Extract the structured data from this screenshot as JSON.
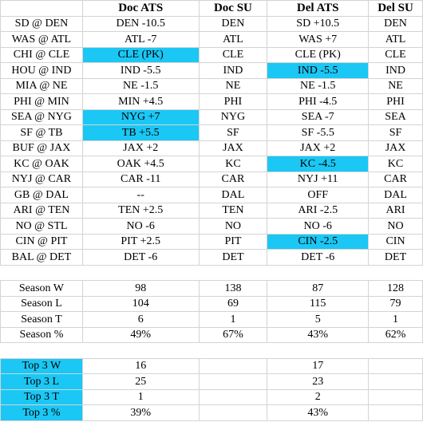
{
  "headers": [
    "",
    "Doc ATS",
    "Doc SU",
    "Del ATS",
    "Del SU"
  ],
  "games": [
    [
      "SD @ DEN",
      "DEN -10.5",
      "DEN",
      "SD +10.5",
      "DEN"
    ],
    [
      "WAS @ ATL",
      "ATL -7",
      "ATL",
      "WAS +7",
      "ATL"
    ],
    [
      "CHI @ CLE",
      "CLE (PK)",
      "CLE",
      "CLE (PK)",
      "CLE"
    ],
    [
      "HOU @ IND",
      "IND -5.5",
      "IND",
      "IND -5.5",
      "IND"
    ],
    [
      "MIA @ NE",
      "NE -1.5",
      "NE",
      "NE -1.5",
      "NE"
    ],
    [
      "PHI @ MIN",
      "MIN +4.5",
      "PHI",
      "PHI -4.5",
      "PHI"
    ],
    [
      "SEA @ NYG",
      "NYG +7",
      "NYG",
      "SEA -7",
      "SEA"
    ],
    [
      "SF @ TB",
      "TB +5.5",
      "SF",
      "SF -5.5",
      "SF"
    ],
    [
      "BUF @ JAX",
      "JAX +2",
      "JAX",
      "JAX +2",
      "JAX"
    ],
    [
      "KC @ OAK",
      "OAK +4.5",
      "KC",
      "KC -4.5",
      "KC"
    ],
    [
      "NYJ @ CAR",
      "CAR -11",
      "CAR",
      "NYJ +11",
      "CAR"
    ],
    [
      "GB @ DAL",
      "--",
      "DAL",
      "OFF",
      "DAL"
    ],
    [
      "ARI @ TEN",
      "TEN +2.5",
      "TEN",
      "ARI -2.5",
      "ARI"
    ],
    [
      "NO @ STL",
      "NO -6",
      "NO",
      "NO -6",
      "NO"
    ],
    [
      "CIN @ PIT",
      "PIT +2.5",
      "PIT",
      "CIN -2.5",
      "CIN"
    ],
    [
      "BAL @ DET",
      "DET -6",
      "DET",
      "DET -6",
      "DET"
    ]
  ],
  "season": [
    [
      "Season W",
      "98",
      "138",
      "87",
      "128"
    ],
    [
      "Season L",
      "104",
      "69",
      "115",
      "79"
    ],
    [
      "Season T",
      "6",
      "1",
      "5",
      "1"
    ],
    [
      "Season %",
      "49%",
      "67%",
      "43%",
      "62%"
    ]
  ],
  "top3": [
    [
      "Top 3 W",
      "16",
      "",
      "17",
      ""
    ],
    [
      "Top 3 L",
      "25",
      "",
      "23",
      ""
    ],
    [
      "Top 3 T",
      "1",
      "",
      "2",
      ""
    ],
    [
      "Top 3 %",
      "39%",
      "",
      "43%",
      ""
    ]
  ],
  "highlight_color": "#1bc7f4"
}
